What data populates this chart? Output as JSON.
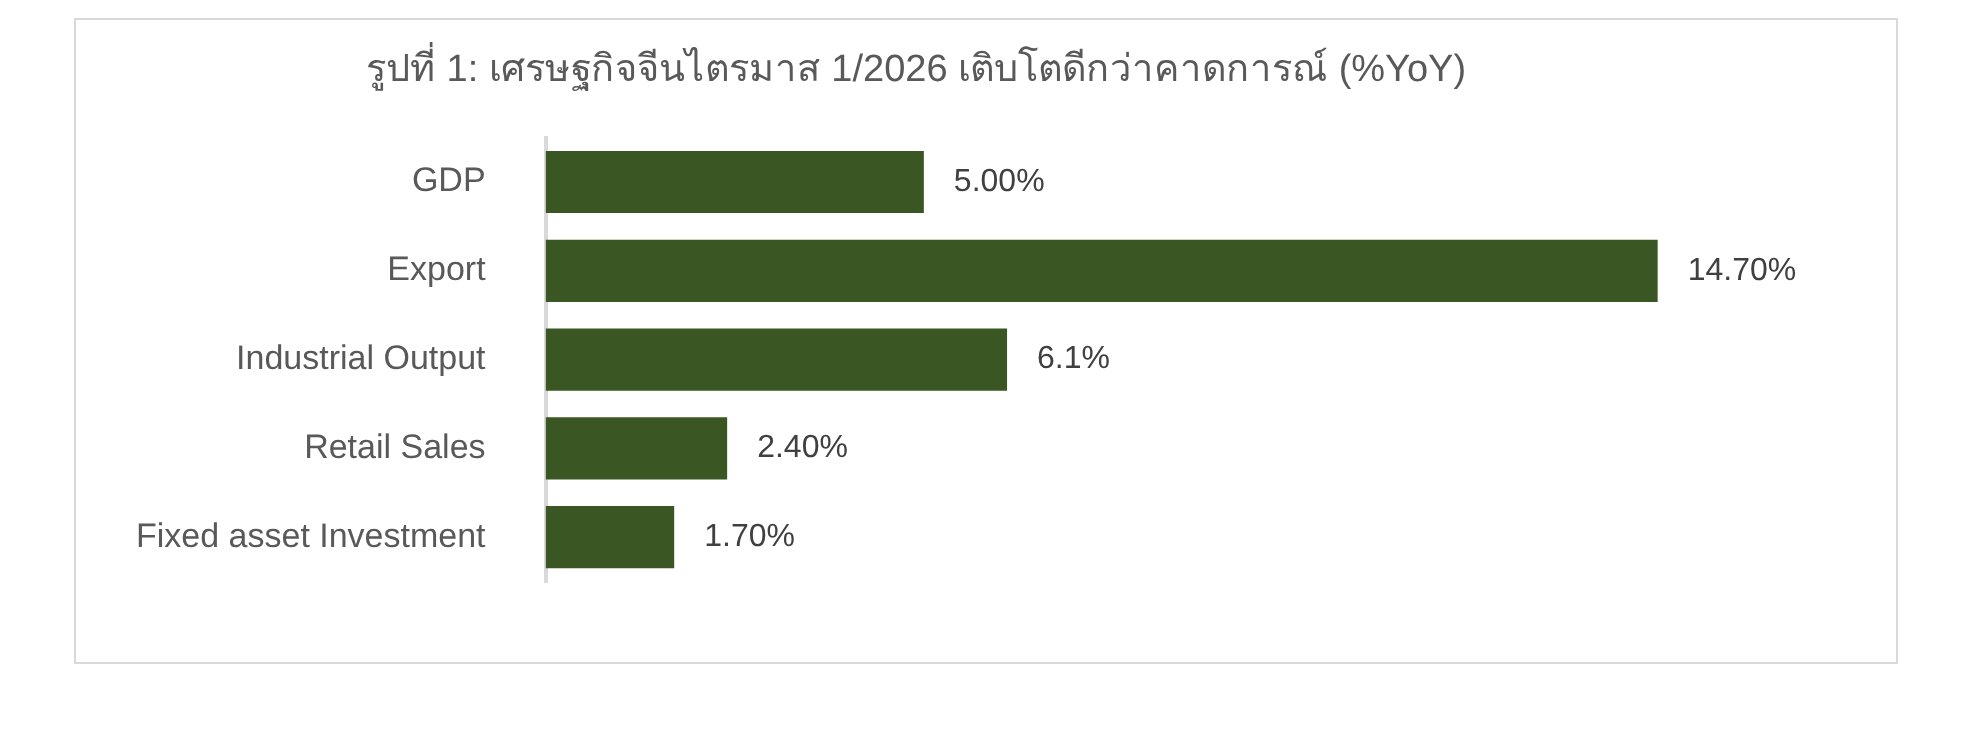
{
  "chart_data": {
    "type": "bar",
    "orientation": "horizontal",
    "title": "รูปที่ 1: เศรษฐกิจจีนไตรมาส 1/2026 เติบโตดีกว่าคาดการณ์ (%YoY)",
    "categories": [
      "GDP",
      "Export",
      "Industrial Output",
      "Retail Sales",
      "Fixed asset Investment"
    ],
    "values": [
      5.0,
      14.7,
      6.1,
      2.4,
      1.7
    ],
    "value_labels": [
      "5.00%",
      "14.70%",
      "6.1%",
      "2.40%",
      "1.70%"
    ],
    "color": "#3a5723",
    "grid": false,
    "legend": false,
    "tick_labels": "y"
  }
}
